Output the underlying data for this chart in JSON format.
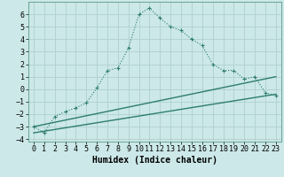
{
  "xlabel": "Humidex (Indice chaleur)",
  "ylabel": "",
  "bg_color": "#cce8e8",
  "grid_color": "#b0d0d0",
  "line_color": "#2d7d6e",
  "xlim": [
    -0.5,
    23.5
  ],
  "ylim": [
    -4.2,
    7.0
  ],
  "yticks": [
    -4,
    -3,
    -2,
    -1,
    0,
    1,
    2,
    3,
    4,
    5,
    6
  ],
  "xticks": [
    0,
    1,
    2,
    3,
    4,
    5,
    6,
    7,
    8,
    9,
    10,
    11,
    12,
    13,
    14,
    15,
    16,
    17,
    18,
    19,
    20,
    21,
    22,
    23
  ],
  "curve1_x": [
    0,
    1,
    2,
    3,
    4,
    5,
    6,
    7,
    8,
    9,
    10,
    11,
    12,
    13,
    14,
    15,
    16,
    17,
    18,
    19,
    20,
    21,
    22,
    23
  ],
  "curve1_y": [
    -3.0,
    -3.5,
    -2.2,
    -1.8,
    -1.5,
    -1.1,
    0.1,
    1.5,
    1.7,
    3.3,
    6.0,
    6.5,
    5.7,
    5.0,
    4.7,
    4.0,
    3.5,
    2.0,
    1.5,
    1.5,
    0.8,
    1.0,
    -0.3,
    -0.5
  ],
  "curve2_x": [
    0,
    23
  ],
  "curve2_y": [
    -3.0,
    1.0
  ],
  "curve3_x": [
    0,
    23
  ],
  "curve3_y": [
    -3.5,
    -0.4
  ],
  "fontsize_label": 7,
  "fontsize_tick": 6,
  "fontsize_xlabel": 7
}
